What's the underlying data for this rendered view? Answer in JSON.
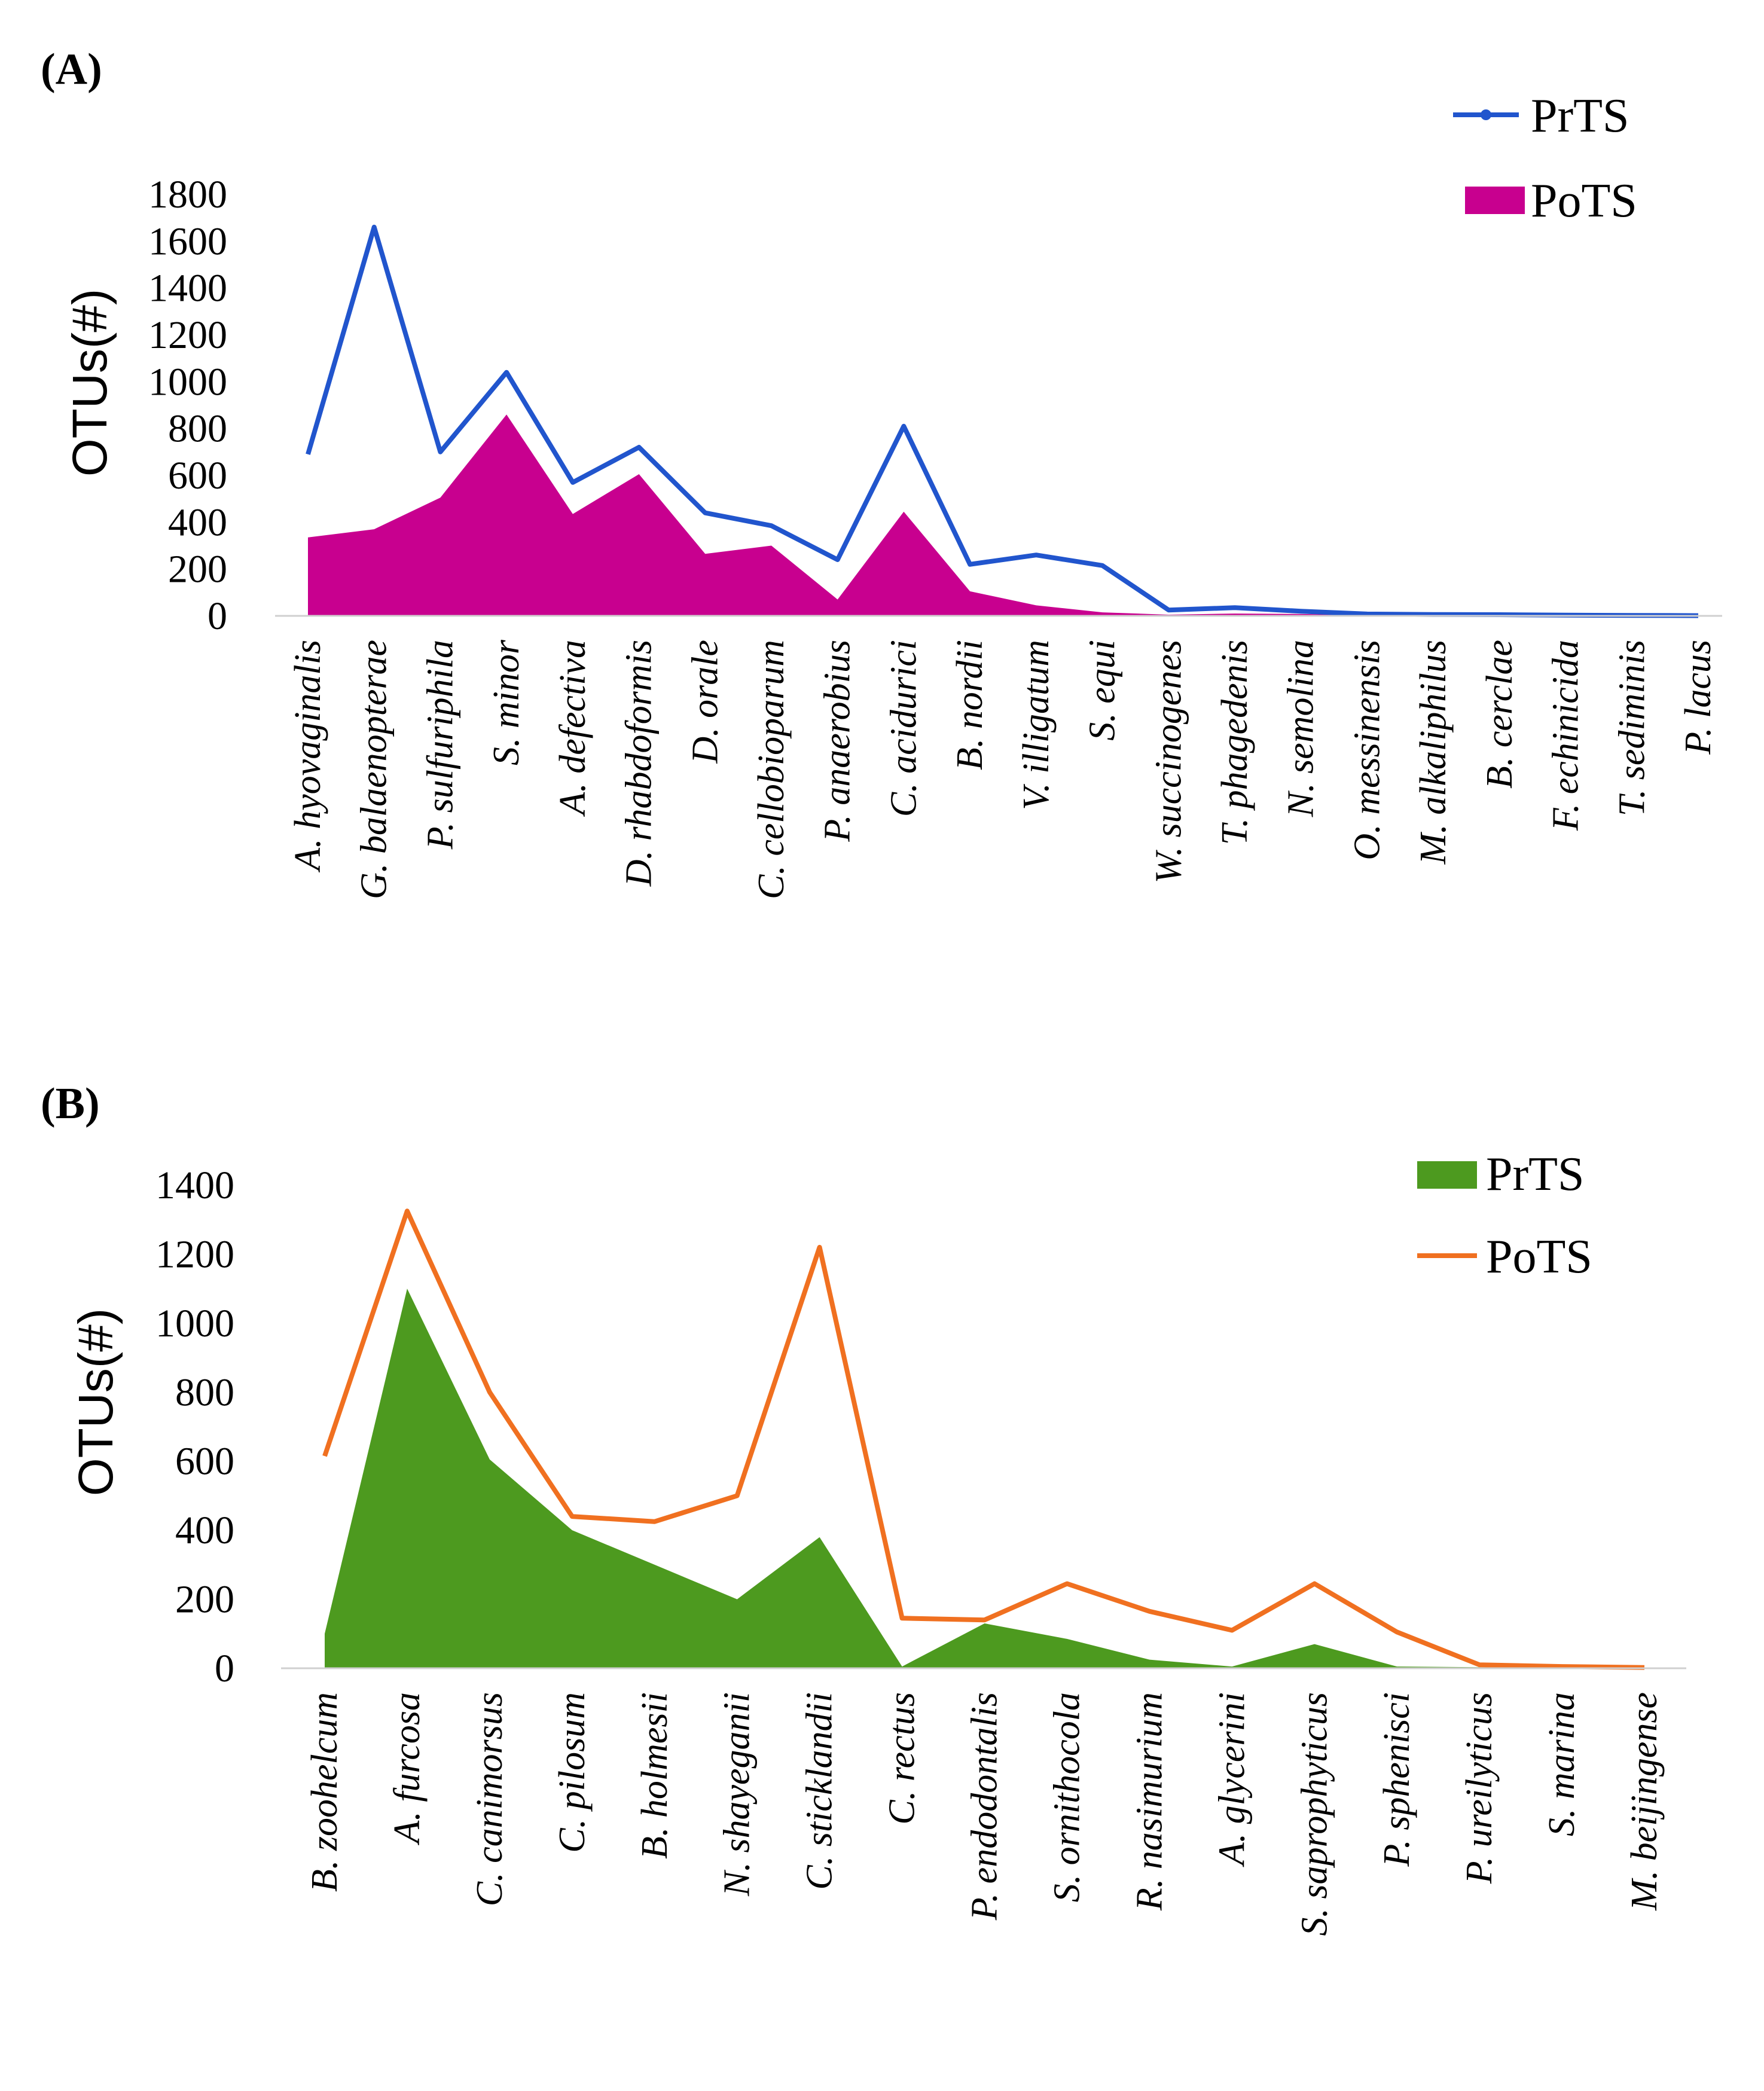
{
  "chart_data": [
    {
      "type": "area",
      "panel_label": "(A)",
      "ylabel": "OTUs(#)",
      "xlabel": "",
      "ylim": [
        0,
        1800
      ],
      "yticks": [
        0,
        200,
        400,
        600,
        800,
        1000,
        1200,
        1400,
        1600,
        1800
      ],
      "categories": [
        "A. hyovaginalis",
        "G. balaenopterae",
        "P. sulfuriphila",
        "S. minor",
        "A. defectiva",
        "D. rhabdoformis",
        "D. orale",
        "C. cellobioparum",
        "P. anaerobius",
        "C. acidurici",
        "B. nordii",
        "V. illigatum",
        "S. equi",
        "W. succinogenes",
        "T. phagedenis",
        "N. semolina",
        "O. messinensis",
        "M. alkaliphilus",
        "B. cerclae",
        "F. echinicida",
        "T. sediminis",
        "P. lacus"
      ],
      "legend_position": "top-right",
      "series": [
        {
          "name": "PrTS",
          "kind": "line",
          "color": "#2155cd",
          "values": [
            690,
            1660,
            700,
            1040,
            570,
            720,
            440,
            385,
            240,
            810,
            220,
            260,
            215,
            25,
            35,
            20,
            8,
            6,
            5,
            3,
            2,
            1
          ]
        },
        {
          "name": "PoTS",
          "kind": "area",
          "color": "#c8008f",
          "values": [
            335,
            370,
            505,
            860,
            435,
            605,
            265,
            300,
            70,
            445,
            105,
            45,
            15,
            5,
            10,
            8,
            4,
            3,
            2,
            1,
            1,
            0
          ]
        }
      ]
    },
    {
      "type": "area",
      "panel_label": "(B)",
      "ylabel": "OTUs(#)",
      "xlabel": "",
      "ylim": [
        0,
        1400
      ],
      "yticks": [
        0,
        200,
        400,
        600,
        800,
        1000,
        1200,
        1400
      ],
      "categories": [
        "B. zoohelcum",
        "A. furcosa",
        "C. canimorsus",
        "C. pilosum",
        "B. holmesii",
        "N. shayeganii",
        "C. sticklandii",
        "C. rectus",
        "P. endodontalis",
        "S. ornithocola",
        "R. nasimurium",
        "A. glycerini",
        "S. saprophyticus",
        "P. spheniscі",
        "P. ureilyticus",
        "S. marina",
        "M. beijingense"
      ],
      "legend_position": "top-right",
      "series": [
        {
          "name": "PrTS",
          "kind": "area",
          "color": "#4d9a1f",
          "values": [
            100,
            1100,
            605,
            400,
            300,
            200,
            380,
            5,
            130,
            85,
            25,
            5,
            70,
            5,
            3,
            2,
            1
          ]
        },
        {
          "name": "PoTS",
          "kind": "line",
          "color": "#f07020",
          "values": [
            615,
            1325,
            800,
            440,
            425,
            500,
            1220,
            145,
            140,
            245,
            165,
            110,
            245,
            105,
            10,
            5,
            2
          ]
        }
      ]
    }
  ]
}
